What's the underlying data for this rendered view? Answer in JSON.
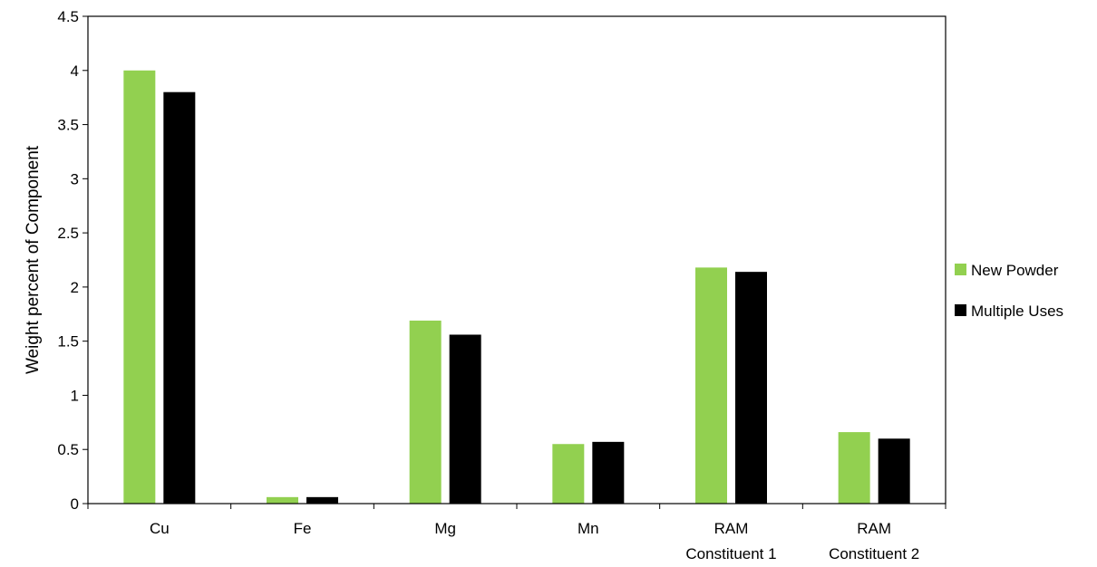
{
  "chart_data": {
    "type": "bar",
    "title": "",
    "xlabel": "",
    "ylabel": "Weight percent of Component",
    "ylim": [
      0,
      4.5
    ],
    "yticks": [
      "0",
      "0.5",
      "1",
      "1.5",
      "2",
      "2.5",
      "3",
      "3.5",
      "4",
      "4.5"
    ],
    "categories": [
      [
        "Cu"
      ],
      [
        "Fe"
      ],
      [
        "Mg"
      ],
      [
        "Mn"
      ],
      [
        "RAM",
        "Constituent 1"
      ],
      [
        "RAM",
        "Constituent 2"
      ]
    ],
    "series": [
      {
        "name": "New Powder",
        "color": "#92D050",
        "values": [
          4.0,
          0.06,
          1.69,
          0.55,
          2.18,
          0.66
        ]
      },
      {
        "name": "Multiple Uses",
        "color": "#000000",
        "values": [
          3.8,
          0.06,
          1.56,
          0.57,
          2.14,
          0.6
        ]
      }
    ],
    "grid": false,
    "legend_position": "right"
  }
}
